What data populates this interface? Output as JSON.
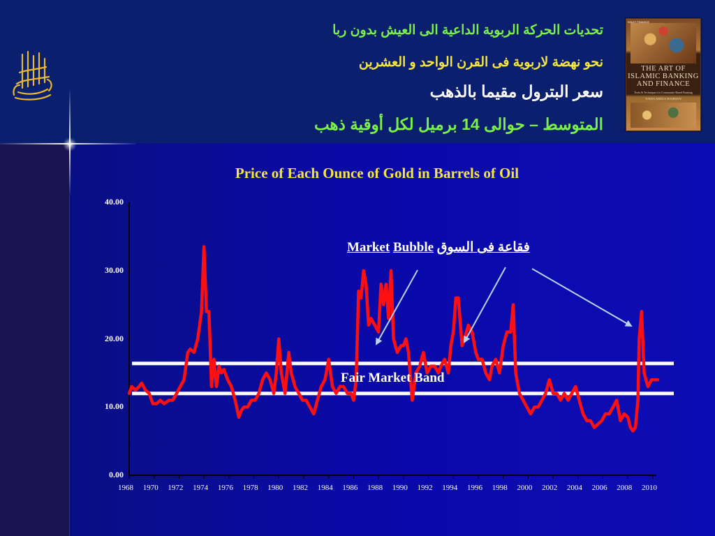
{
  "headings": {
    "line1": "تحديات الحركة الربوية الداعية الى العيش بدون ربا",
    "line2": "نحو نهضة لاربوية فى القرن الواحد و العشرين",
    "line3": "سعر البترول مقيما بالذهب",
    "line4": "المتوسط – حوالى 14 برميل لكل أوقية ذهب"
  },
  "book": {
    "tag": "WILEY FINANCE",
    "title": "THE ART OF ISLAMIC BANKING AND FINANCE",
    "subtitle": "Tools & Techniques for Community-Based Banking",
    "author": "YAHIA ABDUL-RAHMAN"
  },
  "colors": {
    "line": "#ff1010",
    "band": "#ffffff",
    "title": "#f5e640",
    "arrow": "#b8d4f0",
    "heading_green": "#7cf04a",
    "heading_yellow": "#f5e640"
  },
  "annotations": {
    "bubble_en_1": "Market",
    "bubble_en_2": "Bubble",
    "bubble_ar": "فقاعة فى السوق",
    "fair_band": "Fair Market Band"
  },
  "chart_data": {
    "type": "line",
    "title": "Price of Each Ounce of Gold in Barrels of Oil",
    "xlabel": "",
    "ylabel": "",
    "ylim": [
      0,
      40
    ],
    "xlim": [
      1968,
      2011
    ],
    "y_ticks": [
      "0.00",
      "10.00",
      "20.00",
      "30.00",
      "40.00"
    ],
    "x_ticks": [
      "1968",
      "1970",
      "1972",
      "1974",
      "1976",
      "1978",
      "1980",
      "1982",
      "1984",
      "1986",
      "1988",
      "1990",
      "1992",
      "1994",
      "1996",
      "1998",
      "2000",
      "2002",
      "2004",
      "2006",
      "2008",
      "2010"
    ],
    "fair_band": [
      12.0,
      16.4
    ],
    "grid": false,
    "series": [
      {
        "x": [
          1968.0,
          1968.2,
          1968.5,
          1968.8,
          1969.0,
          1969.3,
          1969.6,
          1969.9,
          1970.2,
          1970.5,
          1970.8,
          1971.2,
          1971.5,
          1971.8,
          1972.1,
          1972.4,
          1972.7,
          1972.9,
          1973.2,
          1973.5,
          1973.8,
          1974.0,
          1974.2,
          1974.4,
          1974.6,
          1974.8,
          1975.0,
          1975.2,
          1975.4,
          1975.6,
          1975.9,
          1976.2,
          1976.5,
          1976.8,
          1977.0,
          1977.2,
          1977.5,
          1977.8,
          1978.1,
          1978.4,
          1978.7,
          1979.0,
          1979.3,
          1979.6,
          1979.8,
          1980.0,
          1980.2,
          1980.5,
          1980.8,
          1981.0,
          1981.3,
          1981.6,
          1981.9,
          1982.2,
          1982.5,
          1982.8,
          1983.1,
          1983.4,
          1983.7,
          1984.0,
          1984.3,
          1984.6,
          1984.9,
          1985.2,
          1985.5,
          1985.8,
          1986.0,
          1986.2,
          1986.4,
          1986.6,
          1986.8,
          1987.0,
          1987.2,
          1987.4,
          1987.7,
          1988.0,
          1988.2,
          1988.4,
          1988.6,
          1988.8,
          1989.0,
          1989.2,
          1989.5,
          1989.8,
          1990.0,
          1990.2,
          1990.4,
          1990.7,
          1991.0,
          1991.3,
          1991.6,
          1991.9,
          1992.2,
          1992.5,
          1992.8,
          1993.0,
          1993.3,
          1993.6,
          1993.8,
          1994.0,
          1994.2,
          1994.4,
          1994.7,
          1994.9,
          1995.2,
          1995.5,
          1995.8,
          1996.0,
          1996.3,
          1996.6,
          1996.9,
          1997.1,
          1997.4,
          1997.7,
          1998.0,
          1998.3,
          1998.6,
          1998.8,
          1999.0,
          1999.3,
          1999.6,
          1999.9,
          2000.2,
          2000.5,
          2000.8,
          2001.1,
          2001.4,
          2001.7,
          2002.0,
          2002.3,
          2002.6,
          2002.9,
          2003.2,
          2003.5,
          2003.8,
          2004.1,
          2004.4,
          2004.7,
          2005.0,
          2005.3,
          2005.6,
          2005.9,
          2006.2,
          2006.5,
          2006.8,
          2007.1,
          2007.4,
          2007.7,
          2008.0,
          2008.2,
          2008.4,
          2008.6,
          2008.8,
          2008.9,
          2009.1,
          2009.3,
          2009.6,
          2009.9,
          2010.2,
          2010.4
        ],
        "y": [
          12,
          13,
          12.5,
          13,
          13.5,
          12.5,
          12,
          10.5,
          10.5,
          11,
          10.5,
          11,
          11,
          12,
          13,
          14,
          18,
          18.5,
          18,
          20,
          24,
          33.5,
          24,
          24,
          13,
          17,
          13,
          16,
          15,
          15.5,
          14,
          13,
          11,
          8.5,
          9.5,
          10,
          10,
          11,
          11,
          12,
          14,
          15,
          14,
          12,
          15,
          20,
          15,
          12,
          18,
          15,
          13,
          12,
          11,
          11,
          10,
          9,
          11,
          13,
          14,
          17,
          13,
          12,
          13,
          13,
          12,
          12,
          11,
          14,
          27,
          26,
          30,
          28,
          22,
          23,
          22,
          21,
          28,
          25,
          28,
          23,
          30,
          20,
          18,
          19,
          19,
          20,
          18,
          11,
          15,
          16,
          18,
          15,
          16,
          16,
          15,
          16,
          17,
          15,
          19,
          21,
          26,
          26,
          19,
          20,
          22,
          21,
          18,
          17,
          17,
          15,
          14,
          16,
          17,
          15,
          19,
          21,
          21,
          25,
          15,
          12,
          11,
          10,
          9,
          10,
          10,
          11,
          12,
          14,
          12,
          12,
          11,
          12,
          11,
          12,
          13,
          11,
          9,
          8,
          8,
          7,
          7.5,
          8,
          9,
          9,
          10,
          11,
          8,
          9,
          8.5,
          7,
          6.5,
          7,
          11,
          20,
          24,
          15,
          13,
          14,
          14,
          14
        ]
      }
    ]
  }
}
